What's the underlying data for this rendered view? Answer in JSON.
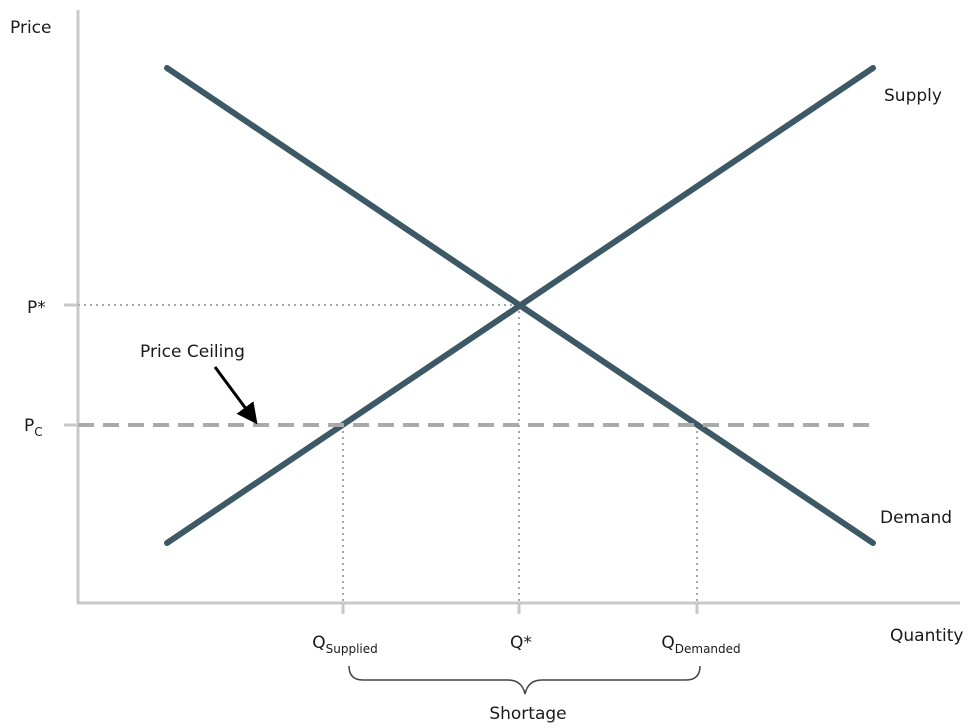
{
  "axes": {
    "y_label": "Price",
    "x_label": "Quantity",
    "color": "#c8c8c8"
  },
  "curves": {
    "supply_label": "Supply",
    "demand_label": "Demand",
    "color": "#3d5966"
  },
  "price_levels": {
    "equilibrium": "P*",
    "ceiling_main": "P",
    "ceiling_sub": "C",
    "guide_color": "#a8a8a8",
    "ceiling_color": "#aaaaaa"
  },
  "quantity_levels": {
    "supplied_main": "Q",
    "supplied_sub": "Supplied",
    "equilibrium": "Q*",
    "demanded_main": "Q",
    "demanded_sub": "Demanded"
  },
  "annotations": {
    "ceiling_callout": "Price Ceiling",
    "shortage": "Shortage"
  }
}
